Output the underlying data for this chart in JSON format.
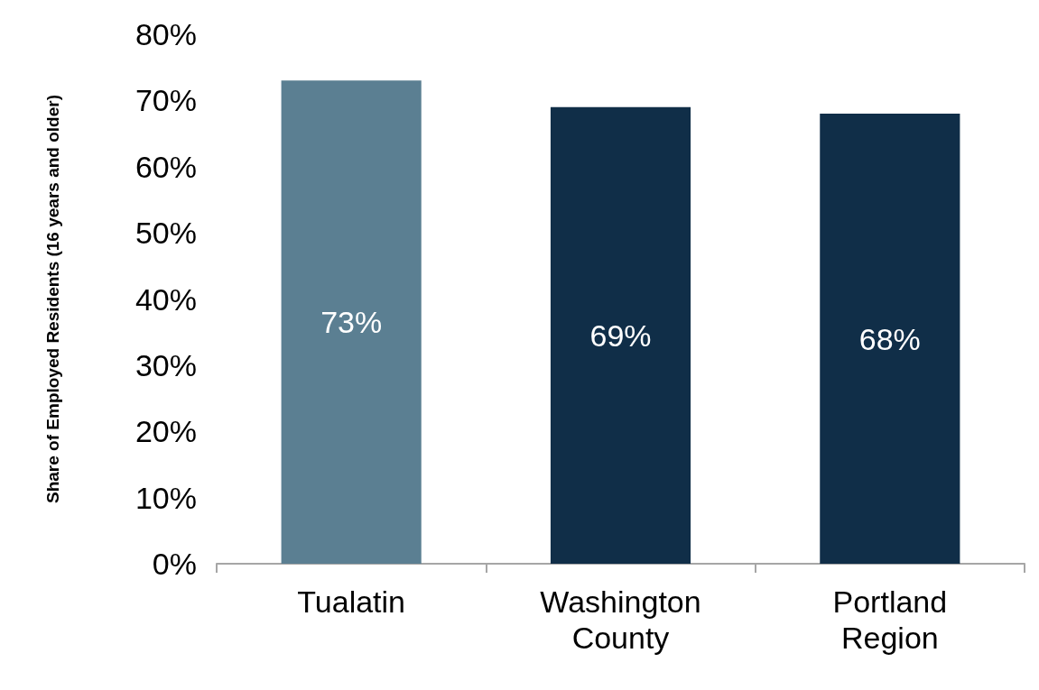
{
  "chart_data": {
    "type": "bar",
    "ylabel": "Share of Employed Residents (16 years and older)",
    "categories": [
      "Tualatin",
      "Washington\nCounty",
      "Portland\nRegion"
    ],
    "values": [
      73,
      69,
      68
    ],
    "colors": [
      "#5b7f92",
      "#102e48",
      "#102e48"
    ],
    "value_labels": [
      "73%",
      "69%",
      "68%"
    ],
    "ylim": [
      0,
      80
    ],
    "yticks": [
      {
        "value": 0,
        "label": "0%"
      },
      {
        "value": 10,
        "label": "10%"
      },
      {
        "value": 20,
        "label": "20%"
      },
      {
        "value": 30,
        "label": "30%"
      },
      {
        "value": 40,
        "label": "40%"
      },
      {
        "value": 50,
        "label": "50%"
      },
      {
        "value": 60,
        "label": "60%"
      },
      {
        "value": 70,
        "label": "70%"
      },
      {
        "value": 80,
        "label": "80%"
      }
    ],
    "grid": false
  }
}
